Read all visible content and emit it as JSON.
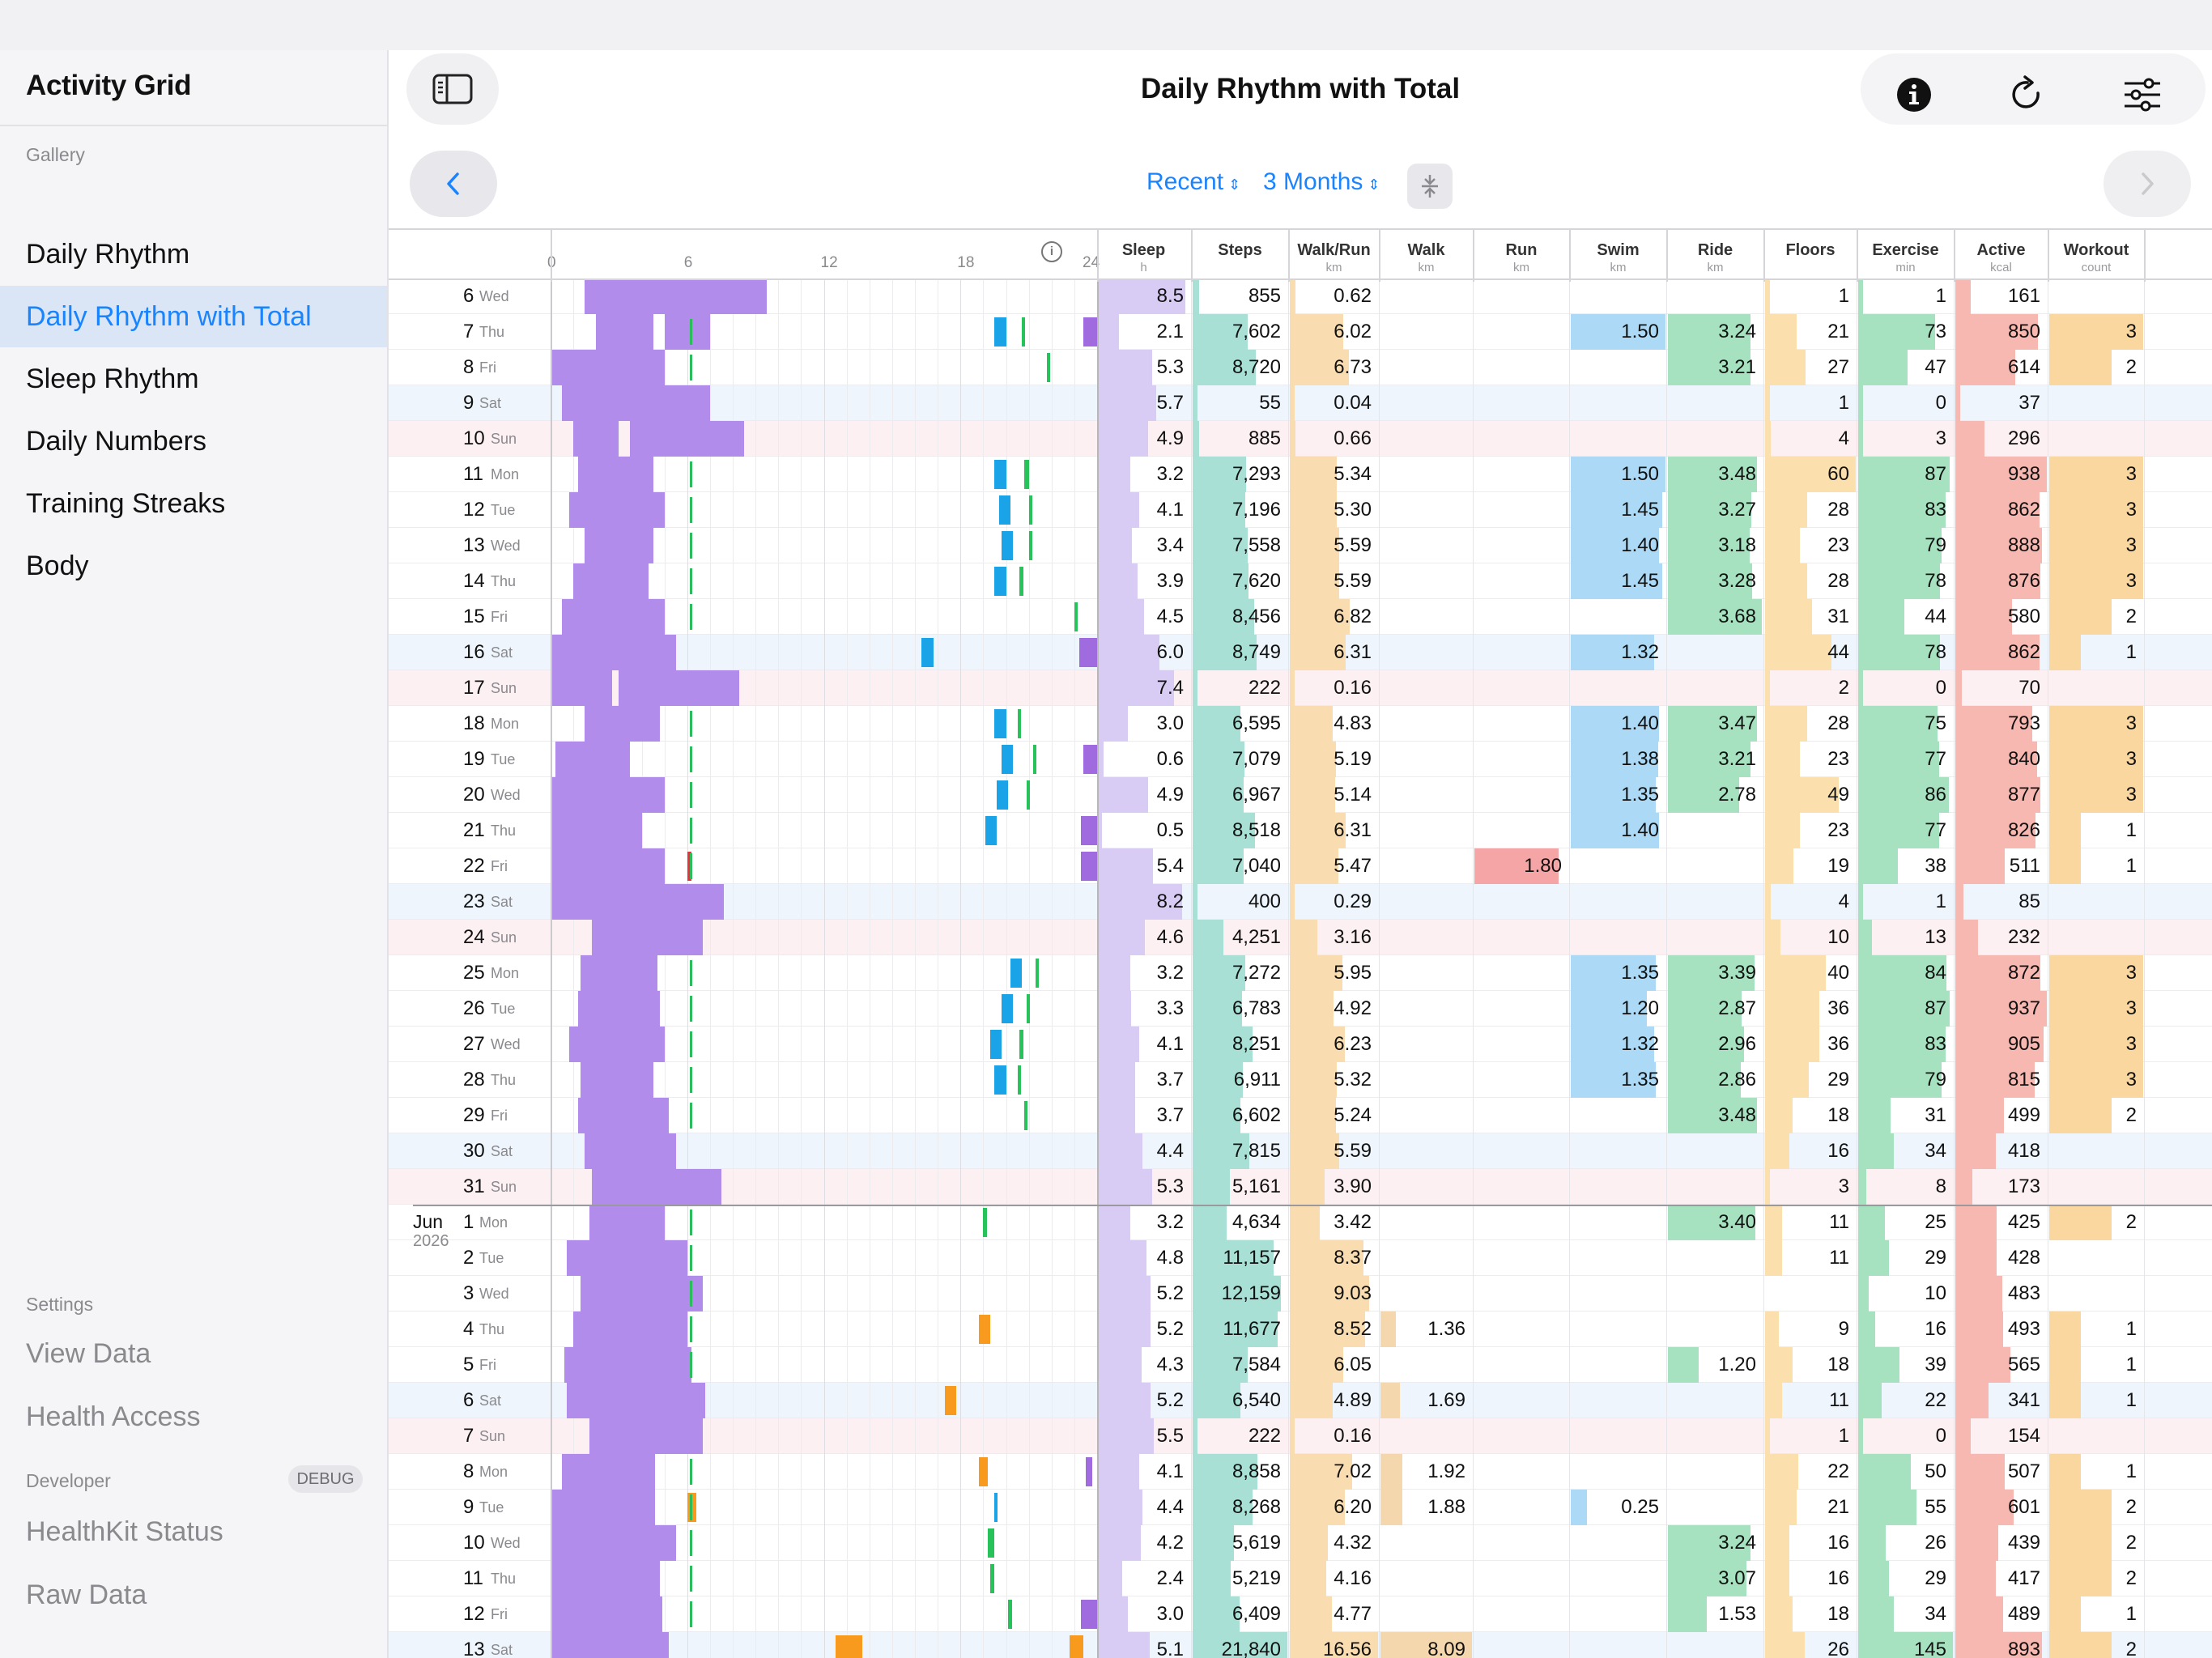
{
  "app_title": "Activity Grid",
  "sidebar": {
    "gallery_label": "Gallery",
    "gallery_items": [
      {
        "label": "Daily Rhythm",
        "selected": false
      },
      {
        "label": "Daily Rhythm with Total",
        "selected": true
      },
      {
        "label": "Sleep Rhythm",
        "selected": false
      },
      {
        "label": "Daily Numbers",
        "selected": false
      },
      {
        "label": "Training Streaks",
        "selected": false
      },
      {
        "label": "Body",
        "selected": false
      }
    ],
    "settings_label": "Settings",
    "settings_items": [
      "View Data",
      "Health Access"
    ],
    "developer_label": "Developer",
    "debug_badge": "DEBUG",
    "developer_items": [
      "HealthKit Status",
      "Raw Data"
    ]
  },
  "header": {
    "title": "Daily Rhythm with Total",
    "range_menu": "Recent",
    "period_menu": "3 Months",
    "icons": [
      "sidebar-toggle-icon",
      "info-icon",
      "refresh-icon",
      "sliders-icon",
      "chevron-left-icon",
      "chevron-right-icon",
      "collapse-icon"
    ]
  },
  "timeline": {
    "ticks": [
      "0",
      "6",
      "12",
      "18",
      "24"
    ]
  },
  "columns": [
    {
      "key": "sleep",
      "label": "Sleep",
      "unit": "h",
      "color": "#d8ccf5"
    },
    {
      "key": "steps",
      "label": "Steps",
      "unit": "",
      "color": "#a9e0d6"
    },
    {
      "key": "walkrun",
      "label": "Walk/Run",
      "unit": "km",
      "color": "#f9dcb0"
    },
    {
      "key": "walk",
      "label": "Walk",
      "unit": "km",
      "color": "#f4d7ad"
    },
    {
      "key": "run",
      "label": "Run",
      "unit": "km",
      "color": "#f5a5a5"
    },
    {
      "key": "swim",
      "label": "Swim",
      "unit": "km",
      "color": "#acd9f5"
    },
    {
      "key": "ride",
      "label": "Ride",
      "unit": "km",
      "color": "#a6e2c0"
    },
    {
      "key": "floors",
      "label": "Floors",
      "unit": "",
      "color": "#fbe0ad"
    },
    {
      "key": "exercise",
      "label": "Exercise",
      "unit": "min",
      "color": "#a6e2c0"
    },
    {
      "key": "active",
      "label": "Active",
      "unit": "kcal",
      "color": "#f6b8b0"
    },
    {
      "key": "workout",
      "label": "Workout",
      "unit": "count",
      "color": "#f9d79f"
    }
  ],
  "months": [
    {
      "label": "Jun",
      "year": "2026",
      "first_row": 26
    }
  ],
  "rows": [
    {
      "d": "6",
      "w": "Wed",
      "sleep": "8.5",
      "steps": "855",
      "walkrun": "0.62",
      "walk": "",
      "run": "",
      "swim": "",
      "ride": "",
      "floors": "1",
      "exercise": "1",
      "active": "161",
      "workout": ""
    },
    {
      "d": "7",
      "w": "Thu",
      "sleep": "2.1",
      "steps": "7,602",
      "walkrun": "6.02",
      "walk": "",
      "run": "",
      "swim": "1.50",
      "ride": "3.24",
      "floors": "21",
      "exercise": "73",
      "active": "850",
      "workout": "3"
    },
    {
      "d": "8",
      "w": "Fri",
      "sleep": "5.3",
      "steps": "8,720",
      "walkrun": "6.73",
      "walk": "",
      "run": "",
      "swim": "",
      "ride": "3.21",
      "floors": "27",
      "exercise": "47",
      "active": "614",
      "workout": "2"
    },
    {
      "d": "9",
      "w": "Sat",
      "sleep": "5.7",
      "steps": "55",
      "walkrun": "0.04",
      "walk": "",
      "run": "",
      "swim": "",
      "ride": "",
      "floors": "1",
      "exercise": "0",
      "active": "37",
      "workout": ""
    },
    {
      "d": "10",
      "w": "Sun",
      "sleep": "4.9",
      "steps": "885",
      "walkrun": "0.66",
      "walk": "",
      "run": "",
      "swim": "",
      "ride": "",
      "floors": "4",
      "exercise": "3",
      "active": "296",
      "workout": ""
    },
    {
      "d": "11",
      "w": "Mon",
      "sleep": "3.2",
      "steps": "7,293",
      "walkrun": "5.34",
      "walk": "",
      "run": "",
      "swim": "1.50",
      "ride": "3.48",
      "floors": "60",
      "exercise": "87",
      "active": "938",
      "workout": "3"
    },
    {
      "d": "12",
      "w": "Tue",
      "sleep": "4.1",
      "steps": "7,196",
      "walkrun": "5.30",
      "walk": "",
      "run": "",
      "swim": "1.45",
      "ride": "3.27",
      "floors": "28",
      "exercise": "83",
      "active": "862",
      "workout": "3"
    },
    {
      "d": "13",
      "w": "Wed",
      "sleep": "3.4",
      "steps": "7,558",
      "walkrun": "5.59",
      "walk": "",
      "run": "",
      "swim": "1.40",
      "ride": "3.18",
      "floors": "23",
      "exercise": "79",
      "active": "888",
      "workout": "3"
    },
    {
      "d": "14",
      "w": "Thu",
      "sleep": "3.9",
      "steps": "7,620",
      "walkrun": "5.59",
      "walk": "",
      "run": "",
      "swim": "1.45",
      "ride": "3.28",
      "floors": "28",
      "exercise": "78",
      "active": "876",
      "workout": "3"
    },
    {
      "d": "15",
      "w": "Fri",
      "sleep": "4.5",
      "steps": "8,456",
      "walkrun": "6.82",
      "walk": "",
      "run": "",
      "swim": "",
      "ride": "3.68",
      "floors": "31",
      "exercise": "44",
      "active": "580",
      "workout": "2"
    },
    {
      "d": "16",
      "w": "Sat",
      "sleep": "6.0",
      "steps": "8,749",
      "walkrun": "6.31",
      "walk": "",
      "run": "",
      "swim": "1.32",
      "ride": "",
      "floors": "44",
      "exercise": "78",
      "active": "862",
      "workout": "1"
    },
    {
      "d": "17",
      "w": "Sun",
      "sleep": "7.4",
      "steps": "222",
      "walkrun": "0.16",
      "walk": "",
      "run": "",
      "swim": "",
      "ride": "",
      "floors": "2",
      "exercise": "0",
      "active": "70",
      "workout": ""
    },
    {
      "d": "18",
      "w": "Mon",
      "sleep": "3.0",
      "steps": "6,595",
      "walkrun": "4.83",
      "walk": "",
      "run": "",
      "swim": "1.40",
      "ride": "3.47",
      "floors": "28",
      "exercise": "75",
      "active": "793",
      "workout": "3"
    },
    {
      "d": "19",
      "w": "Tue",
      "sleep": "0.6",
      "steps": "7,079",
      "walkrun": "5.19",
      "walk": "",
      "run": "",
      "swim": "1.38",
      "ride": "3.21",
      "floors": "23",
      "exercise": "77",
      "active": "840",
      "workout": "3"
    },
    {
      "d": "20",
      "w": "Wed",
      "sleep": "4.9",
      "steps": "6,967",
      "walkrun": "5.14",
      "walk": "",
      "run": "",
      "swim": "1.35",
      "ride": "2.78",
      "floors": "49",
      "exercise": "86",
      "active": "877",
      "workout": "3"
    },
    {
      "d": "21",
      "w": "Thu",
      "sleep": "0.5",
      "steps": "8,518",
      "walkrun": "6.31",
      "walk": "",
      "run": "",
      "swim": "1.40",
      "ride": "",
      "floors": "23",
      "exercise": "77",
      "active": "826",
      "workout": "1"
    },
    {
      "d": "22",
      "w": "Fri",
      "sleep": "5.4",
      "steps": "7,040",
      "walkrun": "5.47",
      "walk": "",
      "run": "1.80",
      "swim": "",
      "ride": "",
      "floors": "19",
      "exercise": "38",
      "active": "511",
      "workout": "1"
    },
    {
      "d": "23",
      "w": "Sat",
      "sleep": "8.2",
      "steps": "400",
      "walkrun": "0.29",
      "walk": "",
      "run": "",
      "swim": "",
      "ride": "",
      "floors": "4",
      "exercise": "1",
      "active": "85",
      "workout": ""
    },
    {
      "d": "24",
      "w": "Sun",
      "sleep": "4.6",
      "steps": "4,251",
      "walkrun": "3.16",
      "walk": "",
      "run": "",
      "swim": "",
      "ride": "",
      "floors": "10",
      "exercise": "13",
      "active": "232",
      "workout": ""
    },
    {
      "d": "25",
      "w": "Mon",
      "sleep": "3.2",
      "steps": "7,272",
      "walkrun": "5.95",
      "walk": "",
      "run": "",
      "swim": "1.35",
      "ride": "3.39",
      "floors": "40",
      "exercise": "84",
      "active": "872",
      "workout": "3"
    },
    {
      "d": "26",
      "w": "Tue",
      "sleep": "3.3",
      "steps": "6,783",
      "walkrun": "4.92",
      "walk": "",
      "run": "",
      "swim": "1.20",
      "ride": "2.87",
      "floors": "36",
      "exercise": "87",
      "active": "937",
      "workout": "3"
    },
    {
      "d": "27",
      "w": "Wed",
      "sleep": "4.1",
      "steps": "8,251",
      "walkrun": "6.23",
      "walk": "",
      "run": "",
      "swim": "1.32",
      "ride": "2.96",
      "floors": "36",
      "exercise": "83",
      "active": "905",
      "workout": "3"
    },
    {
      "d": "28",
      "w": "Thu",
      "sleep": "3.7",
      "steps": "6,911",
      "walkrun": "5.32",
      "walk": "",
      "run": "",
      "swim": "1.35",
      "ride": "2.86",
      "floors": "29",
      "exercise": "79",
      "active": "815",
      "workout": "3"
    },
    {
      "d": "29",
      "w": "Fri",
      "sleep": "3.7",
      "steps": "6,602",
      "walkrun": "5.24",
      "walk": "",
      "run": "",
      "swim": "",
      "ride": "3.48",
      "floors": "18",
      "exercise": "31",
      "active": "499",
      "workout": "2"
    },
    {
      "d": "30",
      "w": "Sat",
      "sleep": "4.4",
      "steps": "7,815",
      "walkrun": "5.59",
      "walk": "",
      "run": "",
      "swim": "",
      "ride": "",
      "floors": "16",
      "exercise": "34",
      "active": "418",
      "workout": ""
    },
    {
      "d": "31",
      "w": "Sun",
      "sleep": "5.3",
      "steps": "5,161",
      "walkrun": "3.90",
      "walk": "",
      "run": "",
      "swim": "",
      "ride": "",
      "floors": "3",
      "exercise": "8",
      "active": "173",
      "workout": ""
    },
    {
      "d": "1",
      "w": "Mon",
      "sleep": "3.2",
      "steps": "4,634",
      "walkrun": "3.42",
      "walk": "",
      "run": "",
      "swim": "",
      "ride": "3.40",
      "floors": "11",
      "exercise": "25",
      "active": "425",
      "workout": "2"
    },
    {
      "d": "2",
      "w": "Tue",
      "sleep": "4.8",
      "steps": "11,157",
      "walkrun": "8.37",
      "walk": "",
      "run": "",
      "swim": "",
      "ride": "",
      "floors": "11",
      "exercise": "29",
      "active": "428",
      "workout": ""
    },
    {
      "d": "3",
      "w": "Wed",
      "sleep": "5.2",
      "steps": "12,159",
      "walkrun": "9.03",
      "walk": "",
      "run": "",
      "swim": "",
      "ride": "",
      "floors": "",
      "exercise": "10",
      "active": "483",
      "workout": ""
    },
    {
      "d": "4",
      "w": "Thu",
      "sleep": "5.2",
      "steps": "11,677",
      "walkrun": "8.52",
      "walk": "1.36",
      "run": "",
      "swim": "",
      "ride": "",
      "floors": "9",
      "exercise": "16",
      "active": "493",
      "workout": "1"
    },
    {
      "d": "5",
      "w": "Fri",
      "sleep": "4.3",
      "steps": "7,584",
      "walkrun": "6.05",
      "walk": "",
      "run": "",
      "swim": "",
      "ride": "1.20",
      "floors": "18",
      "exercise": "39",
      "active": "565",
      "workout": "1"
    },
    {
      "d": "6",
      "w": "Sat",
      "sleep": "5.2",
      "steps": "6,540",
      "walkrun": "4.89",
      "walk": "1.69",
      "run": "",
      "swim": "",
      "ride": "",
      "floors": "11",
      "exercise": "22",
      "active": "341",
      "workout": "1"
    },
    {
      "d": "7",
      "w": "Sun",
      "sleep": "5.5",
      "steps": "222",
      "walkrun": "0.16",
      "walk": "",
      "run": "",
      "swim": "",
      "ride": "",
      "floors": "1",
      "exercise": "0",
      "active": "154",
      "workout": ""
    },
    {
      "d": "8",
      "w": "Mon",
      "sleep": "4.1",
      "steps": "8,858",
      "walkrun": "7.02",
      "walk": "1.92",
      "run": "",
      "swim": "",
      "ride": "",
      "floors": "22",
      "exercise": "50",
      "active": "507",
      "workout": "1"
    },
    {
      "d": "9",
      "w": "Tue",
      "sleep": "4.4",
      "steps": "8,268",
      "walkrun": "6.20",
      "walk": "1.88",
      "run": "",
      "swim": "0.25",
      "ride": "",
      "floors": "21",
      "exercise": "55",
      "active": "601",
      "workout": "2"
    },
    {
      "d": "10",
      "w": "Wed",
      "sleep": "4.2",
      "steps": "5,619",
      "walkrun": "4.32",
      "walk": "",
      "run": "",
      "swim": "",
      "ride": "3.24",
      "floors": "16",
      "exercise": "26",
      "active": "439",
      "workout": "2"
    },
    {
      "d": "11",
      "w": "Thu",
      "sleep": "2.4",
      "steps": "5,219",
      "walkrun": "4.16",
      "walk": "",
      "run": "",
      "swim": "",
      "ride": "3.07",
      "floors": "16",
      "exercise": "29",
      "active": "417",
      "workout": "2"
    },
    {
      "d": "12",
      "w": "Fri",
      "sleep": "3.0",
      "steps": "6,409",
      "walkrun": "4.77",
      "walk": "",
      "run": "",
      "swim": "",
      "ride": "1.53",
      "floors": "18",
      "exercise": "34",
      "active": "489",
      "workout": "1"
    },
    {
      "d": "13",
      "w": "Sat",
      "sleep": "5.1",
      "steps": "21,840",
      "walkrun": "16.56",
      "walk": "8.09",
      "run": "",
      "swim": "",
      "ride": "",
      "floors": "26",
      "exercise": "145",
      "active": "893",
      "workout": "2"
    }
  ]
}
